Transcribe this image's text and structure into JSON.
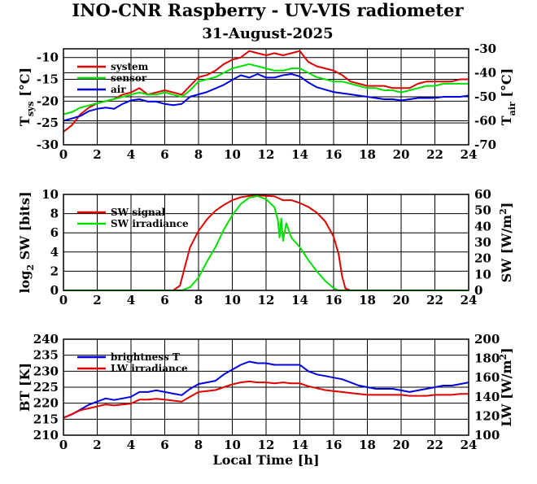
{
  "title": "INO-CNR Raspberry - UV-VIS radiometer",
  "subtitle": "31-August-2025",
  "colors": {
    "red": "#e00000",
    "green": "#00e000",
    "blue": "#0000e0",
    "grid": "#000000"
  },
  "chart_data": [
    {
      "type": "line",
      "name": "temperatures",
      "xlabel": "",
      "xlim": [
        0,
        24
      ],
      "xticks": [
        "0",
        "2",
        "4",
        "6",
        "8",
        "10",
        "12",
        "14",
        "16",
        "18",
        "20",
        "22",
        "24"
      ],
      "ylabel_left": {
        "main": "T",
        "sub": "sys",
        "unit": " [°C]"
      },
      "ylabel_right": {
        "main": "T",
        "sub": "air",
        "unit": " [°C]"
      },
      "ylim_left": [
        -30,
        -8
      ],
      "yticks_left": [
        "-30",
        "-25",
        "-20",
        "-15",
        "-10"
      ],
      "ylim_right": [
        -70,
        -30
      ],
      "yticks_right": [
        "-70",
        "-60",
        "-50",
        "-40",
        "-30"
      ],
      "grid": true,
      "legend_position": "top-left",
      "series": [
        {
          "name": "system",
          "color": "#e00000",
          "axis": "left",
          "x": [
            0,
            0.5,
            1,
            1.5,
            2,
            2.5,
            3,
            3.5,
            4,
            4.5,
            5,
            5.5,
            6,
            6.5,
            7,
            7.5,
            8,
            8.5,
            9,
            9.5,
            10,
            10.5,
            11,
            11.5,
            12,
            12.5,
            13,
            13.5,
            14,
            14.5,
            15,
            15.5,
            16,
            16.5,
            17,
            17.5,
            18,
            18.5,
            19,
            19.5,
            20,
            20.5,
            21,
            21.5,
            22,
            22.5,
            23,
            23.5,
            24
          ],
          "y": [
            -27,
            -25.5,
            -23,
            -21.5,
            -20.5,
            -20,
            -19.5,
            -18.5,
            -18,
            -17,
            -18.5,
            -18,
            -17.5,
            -18,
            -18.5,
            -16.5,
            -14.5,
            -14,
            -13,
            -11.5,
            -10.5,
            -10,
            -8.5,
            -9,
            -9.5,
            -9,
            -9.5,
            -9,
            -8.5,
            -11,
            -12,
            -12.5,
            -13,
            -14,
            -15.5,
            -16,
            -16.5,
            -16.5,
            -16.5,
            -17,
            -17,
            -17,
            -16,
            -15.5,
            -15.5,
            -15.5,
            -15.5,
            -15,
            -15
          ]
        },
        {
          "name": "sensor",
          "color": "#00e000",
          "axis": "left",
          "x": [
            0,
            0.5,
            1,
            1.5,
            2,
            2.5,
            3,
            3.5,
            4,
            4.5,
            5,
            5.5,
            6,
            6.5,
            7,
            7.5,
            8,
            8.5,
            9,
            9.5,
            10,
            10.5,
            11,
            11.5,
            12,
            12.5,
            13,
            13.5,
            14,
            14.5,
            15,
            15.5,
            16,
            16.5,
            17,
            17.5,
            18,
            18.5,
            19,
            19.5,
            20,
            20.5,
            21,
            21.5,
            22,
            22.5,
            23,
            23.5,
            24
          ],
          "y": [
            -23,
            -22.5,
            -21.5,
            -21,
            -20.5,
            -20,
            -19.5,
            -19,
            -18.5,
            -18,
            -18.5,
            -18.5,
            -18,
            -18.5,
            -19,
            -17.5,
            -15.5,
            -15,
            -14.5,
            -13.5,
            -12.5,
            -12,
            -11.5,
            -12,
            -12.5,
            -13,
            -13,
            -12.5,
            -12.5,
            -13.5,
            -14.5,
            -15,
            -15.5,
            -15.5,
            -16,
            -16.5,
            -17,
            -17,
            -17.5,
            -17.5,
            -18,
            -17.5,
            -17,
            -16.5,
            -16.5,
            -16,
            -16,
            -16,
            -16
          ]
        },
        {
          "name": "air",
          "color": "#0000e0",
          "axis": "right",
          "x": [
            0,
            0.5,
            1,
            1.5,
            2,
            2.5,
            3,
            3.5,
            4,
            4.5,
            5,
            5.5,
            6,
            6.5,
            7,
            7.5,
            8,
            8.5,
            9,
            9.5,
            10,
            10.5,
            11,
            11.5,
            12,
            12.5,
            13,
            13.5,
            14,
            14.5,
            15,
            15.5,
            16,
            16.5,
            17,
            17.5,
            18,
            18.5,
            19,
            19.5,
            20,
            20.5,
            21,
            21.5,
            22,
            22.5,
            23,
            23.5,
            24
          ],
          "y": [
            -60,
            -59,
            -58,
            -56,
            -55,
            -54.5,
            -55,
            -53,
            -51.5,
            -51,
            -52,
            -52,
            -53,
            -53.5,
            -53,
            -50,
            -49,
            -48,
            -46.5,
            -45,
            -43,
            -41,
            -42,
            -40.5,
            -42,
            -42,
            -41,
            -40.5,
            -41.5,
            -44,
            -46,
            -47,
            -48,
            -48.5,
            -49,
            -49.5,
            -50,
            -50.5,
            -51,
            -51,
            -51.5,
            -51,
            -50.5,
            -50.5,
            -50.5,
            -50,
            -50,
            -50,
            -49.5
          ]
        }
      ]
    },
    {
      "type": "line",
      "name": "shortwave",
      "xlabel": "",
      "xlim": [
        0,
        24
      ],
      "xticks": [
        "0",
        "2",
        "4",
        "6",
        "8",
        "10",
        "12",
        "14",
        "16",
        "18",
        "20",
        "22",
        "24"
      ],
      "ylabel_left": {
        "main": "log",
        "sub": "2",
        "unit": " SW [bits]"
      },
      "ylabel_right": {
        "main": "SW [W/m",
        "sup": "2",
        "unit": "]"
      },
      "ylim_left": [
        0,
        10
      ],
      "yticks_left": [
        "0",
        "2",
        "4",
        "6",
        "8",
        "10"
      ],
      "ylim_right": [
        0,
        60
      ],
      "yticks_right": [
        "0",
        "10",
        "20",
        "30",
        "40",
        "50",
        "60"
      ],
      "grid": true,
      "legend_position": "top-left",
      "series": [
        {
          "name": "SW signal",
          "color": "#e00000",
          "axis": "left",
          "x": [
            0,
            6.5,
            6.9,
            7.2,
            7.5,
            8,
            8.5,
            9,
            9.5,
            10,
            10.5,
            11,
            11.5,
            12,
            12.5,
            13,
            13.5,
            14,
            14.5,
            15,
            15.5,
            16,
            16.3,
            16.5,
            16.7,
            17,
            24
          ],
          "y": [
            0,
            0,
            0.5,
            2.5,
            4.5,
            6.2,
            7.4,
            8.3,
            8.9,
            9.4,
            9.7,
            9.85,
            9.9,
            9.85,
            9.8,
            9.4,
            9.4,
            9.1,
            8.7,
            8.1,
            7.2,
            5.6,
            3.8,
            1.5,
            0.2,
            0,
            0
          ]
        },
        {
          "name": "SW irradiance",
          "color": "#00e000",
          "axis": "right",
          "x": [
            0,
            7,
            7.5,
            8,
            8.5,
            9,
            9.5,
            10,
            10.5,
            11,
            11.5,
            12,
            12.5,
            12.7,
            12.8,
            12.9,
            13,
            13.2,
            13.5,
            14,
            14.5,
            15,
            15.5,
            16,
            16.3,
            24
          ],
          "y": [
            0,
            0,
            2,
            8,
            18,
            27,
            38,
            47,
            54,
            58,
            59,
            57,
            52,
            44,
            33,
            45,
            31,
            42,
            33,
            27,
            19,
            12,
            6,
            1.5,
            0,
            0
          ]
        }
      ]
    },
    {
      "type": "line",
      "name": "longwave",
      "xlabel": "Local Time [h]",
      "xlim": [
        0,
        24
      ],
      "xticks": [
        "0",
        "2",
        "4",
        "6",
        "8",
        "10",
        "12",
        "14",
        "16",
        "18",
        "20",
        "22",
        "24"
      ],
      "ylabel_left": {
        "main": "BT [K]"
      },
      "ylabel_right": {
        "main": "LW [W/m",
        "sup": "2",
        "unit": "]"
      },
      "ylim_left": [
        210,
        240
      ],
      "yticks_left": [
        "210",
        "215",
        "220",
        "225",
        "230",
        "235",
        "240"
      ],
      "ylim_right": [
        100,
        200
      ],
      "yticks_right": [
        "100",
        "120",
        "140",
        "160",
        "180",
        "200"
      ],
      "grid": true,
      "legend_position": "top-left",
      "series": [
        {
          "name": "brightness T",
          "color": "#0000e0",
          "axis": "left",
          "x": [
            0,
            0.5,
            1,
            1.5,
            2,
            2.5,
            3,
            3.5,
            4,
            4.5,
            5,
            5.5,
            6,
            6.5,
            7,
            7.5,
            8,
            8.5,
            9,
            9.5,
            10,
            10.5,
            11,
            11.5,
            12,
            12.5,
            13,
            13.5,
            14,
            14.5,
            15,
            15.5,
            16,
            16.5,
            17,
            17.5,
            18,
            18.5,
            19,
            19.5,
            20,
            20.5,
            21,
            21.5,
            22,
            22.5,
            23,
            23.5,
            24
          ],
          "y": [
            215.5,
            216.5,
            218,
            219.5,
            220.5,
            221.5,
            221,
            221.5,
            222,
            223.5,
            223.5,
            224,
            223.5,
            223,
            222.5,
            224.5,
            226,
            226.5,
            227,
            229,
            230.5,
            232,
            233,
            232.5,
            232.5,
            232,
            232,
            232,
            232,
            230,
            229,
            228.5,
            228,
            227.5,
            226.5,
            225.5,
            225,
            224.5,
            224.5,
            224.5,
            224,
            223.5,
            224,
            224.5,
            225,
            225.5,
            225.5,
            226,
            226.5
          ]
        },
        {
          "name": "LW irradiance",
          "color": "#e00000",
          "axis": "right",
          "x": [
            0,
            0.5,
            1,
            1.5,
            2,
            2.5,
            3,
            3.5,
            4,
            4.5,
            5,
            5.5,
            6,
            6.5,
            7,
            7.5,
            8,
            8.5,
            9,
            9.5,
            10,
            10.5,
            11,
            11.5,
            12,
            12.5,
            13,
            13.5,
            14,
            14.5,
            15,
            15.5,
            16,
            16.5,
            17,
            17.5,
            18,
            18.5,
            19,
            19.5,
            20,
            20.5,
            21,
            21.5,
            22,
            22.5,
            23,
            23.5,
            24
          ],
          "y": [
            118,
            122,
            126,
            128,
            130,
            132,
            131,
            132,
            133,
            137,
            137,
            138,
            137,
            136,
            135,
            140,
            145,
            146,
            147,
            150,
            153,
            155,
            156,
            155,
            155,
            154,
            155,
            154,
            154,
            151,
            149,
            147,
            146,
            145,
            144,
            143,
            142,
            142,
            142,
            142,
            142,
            141,
            141,
            141,
            142,
            142,
            142,
            143,
            143
          ]
        }
      ]
    }
  ]
}
